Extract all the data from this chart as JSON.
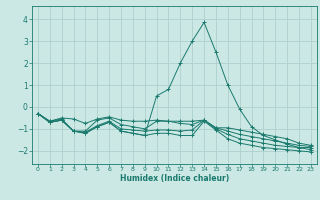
{
  "xlabel": "Humidex (Indice chaleur)",
  "background_color": "#cce8e5",
  "grid_color": "#aed0cd",
  "line_color": "#1a7a6e",
  "xlim": [
    -0.5,
    23.5
  ],
  "ylim": [
    -2.6,
    4.6
  ],
  "xticks": [
    0,
    1,
    2,
    3,
    4,
    5,
    6,
    7,
    8,
    9,
    10,
    11,
    12,
    13,
    14,
    15,
    16,
    17,
    18,
    19,
    20,
    21,
    22,
    23
  ],
  "yticks": [
    -2,
    -1,
    0,
    1,
    2,
    3,
    4
  ],
  "lines": [
    {
      "x": [
        0,
        1,
        2,
        3,
        4,
        5,
        6,
        7,
        8,
        9,
        10,
        11,
        12,
        13,
        14,
        15,
        16,
        17,
        18,
        19,
        20,
        21,
        22,
        23
      ],
      "y": [
        -0.3,
        -0.65,
        -0.5,
        -0.55,
        -0.75,
        -0.55,
        -0.45,
        -0.6,
        -0.65,
        -0.65,
        -0.6,
        -0.65,
        -0.65,
        -0.65,
        -0.6,
        -0.95,
        -0.95,
        -1.05,
        -1.15,
        -1.25,
        -1.35,
        -1.45,
        -1.65,
        -1.75
      ]
    },
    {
      "x": [
        0,
        1,
        2,
        3,
        4,
        5,
        6,
        7,
        8,
        9,
        10,
        11,
        12,
        13,
        14,
        15,
        16,
        17,
        18,
        19,
        20,
        21,
        22,
        23
      ],
      "y": [
        -0.3,
        -0.65,
        -0.55,
        -1.1,
        -1.1,
        -0.6,
        -0.5,
        -0.8,
        -0.9,
        -1.0,
        -0.65,
        -0.65,
        -0.75,
        -0.8,
        -0.6,
        -0.95,
        -1.1,
        -1.25,
        -1.35,
        -1.45,
        -1.55,
        -1.65,
        -1.75,
        -1.8
      ]
    },
    {
      "x": [
        0,
        1,
        2,
        3,
        4,
        5,
        6,
        7,
        8,
        9,
        10,
        11,
        12,
        13,
        14,
        15,
        16,
        17,
        18,
        19,
        20,
        21,
        22,
        23
      ],
      "y": [
        -0.3,
        -0.7,
        -0.6,
        -1.1,
        -1.15,
        -0.85,
        -0.65,
        -1.0,
        -1.05,
        -1.1,
        -1.05,
        -1.05,
        -1.1,
        -1.05,
        -0.6,
        -1.0,
        -1.25,
        -1.45,
        -1.55,
        -1.65,
        -1.75,
        -1.8,
        -1.85,
        -1.85
      ]
    },
    {
      "x": [
        0,
        1,
        2,
        3,
        4,
        5,
        6,
        7,
        8,
        9,
        10,
        11,
        12,
        13,
        14,
        15,
        16,
        17,
        18,
        19,
        20,
        21,
        22,
        23
      ],
      "y": [
        -0.3,
        -0.7,
        -0.6,
        -1.1,
        -1.2,
        -0.9,
        -0.7,
        -1.1,
        -1.2,
        -1.3,
        -1.2,
        -1.2,
        -1.3,
        -1.3,
        -0.65,
        -1.05,
        -1.45,
        -1.65,
        -1.75,
        -1.85,
        -1.9,
        -1.95,
        -2.0,
        -2.05
      ]
    },
    {
      "x": [
        0,
        1,
        2,
        3,
        4,
        5,
        6,
        7,
        8,
        9,
        10,
        11,
        12,
        13,
        14,
        15,
        16,
        17,
        18,
        19,
        20,
        21,
        22,
        23
      ],
      "y": [
        -0.3,
        -0.7,
        -0.6,
        -1.1,
        -1.2,
        -0.9,
        -0.7,
        -1.1,
        -1.2,
        -1.3,
        0.5,
        0.8,
        2.0,
        3.0,
        3.85,
        2.5,
        1.0,
        -0.1,
        -0.9,
        -1.3,
        -1.5,
        -1.7,
        -1.85,
        -1.95
      ]
    }
  ]
}
